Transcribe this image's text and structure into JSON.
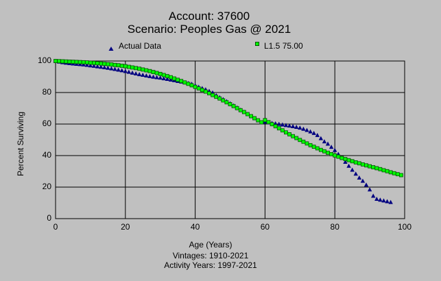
{
  "colors": {
    "background": "#c0c0c0",
    "plot_background": "#c0c0c0",
    "grid": "#000000",
    "actual_marker": "#000080",
    "fit_marker_fill": "#00ff00",
    "fit_marker_stroke": "#005000"
  },
  "chart_data": {
    "type": "scatter",
    "title": "Account: 37600",
    "subtitle": "Scenario: Peoples Gas @ 2021",
    "xlabel": "Age (Years)",
    "ylabel": "Percent Surviving",
    "xlim": [
      0,
      100
    ],
    "ylim": [
      0,
      100
    ],
    "xticks": [
      0,
      20,
      40,
      60,
      80,
      100
    ],
    "yticks": [
      0,
      20,
      40,
      60,
      80,
      100
    ],
    "grid": true,
    "legend_position": "top",
    "footer": [
      "Vintages: 1910-2021",
      "Activity Years: 1997-2021"
    ],
    "series": [
      {
        "name": "Actual Data",
        "marker": "triangle",
        "x": [
          0,
          1,
          2,
          3,
          4,
          5,
          6,
          7,
          8,
          9,
          10,
          11,
          12,
          13,
          14,
          15,
          16,
          17,
          18,
          19,
          20,
          21,
          22,
          23,
          24,
          25,
          26,
          27,
          28,
          29,
          30,
          31,
          32,
          33,
          34,
          35,
          36,
          37,
          38,
          39,
          40,
          41,
          42,
          43,
          44,
          45,
          46,
          47,
          48,
          49,
          50,
          51,
          52,
          53,
          54,
          55,
          56,
          57,
          58,
          59,
          60,
          61,
          62,
          63,
          64,
          65,
          66,
          67,
          68,
          69,
          70,
          71,
          72,
          73,
          74,
          75,
          76,
          77,
          78,
          79,
          80,
          81,
          82,
          83,
          84,
          85,
          86,
          87,
          88,
          89,
          90,
          91,
          92,
          93,
          94,
          95,
          96
        ],
        "y": [
          100,
          99.6,
          99.2,
          98.9,
          98.6,
          98.4,
          98.2,
          98,
          97.8,
          97.5,
          97.2,
          96.9,
          96.6,
          96.3,
          96,
          95.7,
          95.3,
          94.9,
          94.5,
          94.1,
          93.6,
          93.1,
          92.6,
          92.1,
          91.6,
          91.2,
          90.8,
          90.4,
          90,
          89.7,
          89.4,
          89,
          88.6,
          88.2,
          87.8,
          87.3,
          86.9,
          86.4,
          86,
          85.5,
          84.5,
          83.6,
          82.8,
          82,
          81,
          80,
          78.3,
          77,
          75.8,
          74.5,
          73.2,
          71.8,
          70.5,
          69.1,
          67.8,
          66.4,
          65,
          63.7,
          62.3,
          61,
          61.5,
          61,
          60.7,
          60.4,
          60.1,
          59.7,
          59.3,
          59,
          58.6,
          58.2,
          57.7,
          57,
          56.2,
          55.3,
          54.3,
          53,
          51,
          49,
          47.5,
          45.5,
          43.5,
          41,
          38.5,
          36,
          33.5,
          31,
          28.5,
          26,
          24,
          21.5,
          18.5,
          14.5,
          12.5,
          12,
          11.5,
          11,
          10.5
        ]
      },
      {
        "name": "L1.5 75.00",
        "marker": "square",
        "x": [
          0,
          1,
          2,
          3,
          4,
          5,
          6,
          7,
          8,
          9,
          10,
          11,
          12,
          13,
          14,
          15,
          16,
          17,
          18,
          19,
          20,
          21,
          22,
          23,
          24,
          25,
          26,
          27,
          28,
          29,
          30,
          31,
          32,
          33,
          34,
          35,
          36,
          37,
          38,
          39,
          40,
          41,
          42,
          43,
          44,
          45,
          46,
          47,
          48,
          49,
          50,
          51,
          52,
          53,
          54,
          55,
          56,
          57,
          58,
          59,
          60,
          61,
          62,
          63,
          64,
          65,
          66,
          67,
          68,
          69,
          70,
          71,
          72,
          73,
          74,
          75,
          76,
          77,
          78,
          79,
          80,
          81,
          82,
          83,
          84,
          85,
          86,
          87,
          88,
          89,
          90,
          91,
          92,
          93,
          94,
          95,
          96,
          97,
          98,
          99
        ],
        "y": [
          100,
          99.9,
          99.8,
          99.7,
          99.6,
          99.5,
          99.4,
          99.3,
          99.2,
          99.1,
          98.9,
          98.8,
          98.6,
          98.4,
          98.2,
          98,
          97.8,
          97.5,
          97.3,
          97,
          96.7,
          96.3,
          95.9,
          95.5,
          95.1,
          94.6,
          94.1,
          93.6,
          93,
          92.4,
          91.8,
          91.1,
          90.4,
          89.7,
          88.9,
          88.1,
          87.3,
          86.4,
          85.5,
          84.6,
          83.6,
          82.6,
          81.6,
          80.6,
          79.5,
          78.4,
          77.3,
          76.2,
          75,
          73.8,
          72.6,
          71.4,
          70.1,
          68.8,
          67.6,
          66.3,
          65,
          63.7,
          62.4,
          61.1,
          62.5,
          61.2,
          59.9,
          58.6,
          57.3,
          56,
          54.7,
          53.5,
          52.3,
          51.1,
          49.9,
          48.8,
          47.7,
          46.6,
          45.6,
          44.6,
          43.6,
          42.7,
          41.8,
          40.9,
          40.1,
          39.3,
          38.5,
          37.8,
          37.1,
          36.4,
          35.7,
          35.1,
          34.4,
          33.8,
          33.2,
          32.6,
          32,
          31.4,
          30.7,
          30.1,
          29.4,
          28.8,
          28.2,
          27.6
        ]
      }
    ]
  }
}
